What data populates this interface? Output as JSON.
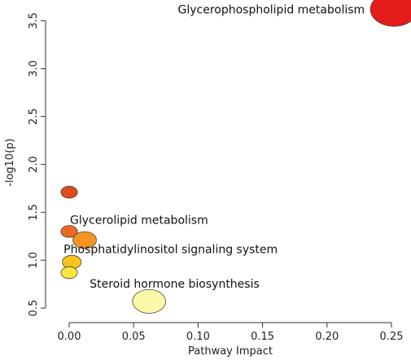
{
  "chart_data": {
    "type": "scatter",
    "title": "",
    "xlabel": "Pathway Impact",
    "ylabel": "-log10(p)",
    "xlim": [
      -0.012,
      0.262
    ],
    "ylim": [
      0.45,
      3.7
    ],
    "x_ticks": [
      "0.00",
      "0.05",
      "0.10",
      "0.15",
      "0.20",
      "0.25"
    ],
    "y_ticks": [
      "0.5",
      "1.0",
      "1.5",
      "2.0",
      "2.5",
      "3.0",
      "3.5"
    ],
    "grid": false,
    "legend": "none",
    "points": [
      {
        "x": 0.252,
        "y": 3.62,
        "size": 1.0,
        "color": "#e51a1a",
        "label": "Glycerophospholipid metabolism"
      },
      {
        "x": 0.0,
        "y": 1.71,
        "size": 0.35,
        "color": "#e04a1c",
        "label": ""
      },
      {
        "x": 0.0,
        "y": 1.3,
        "size": 0.35,
        "color": "#ec6a1f",
        "label": ""
      },
      {
        "x": 0.012,
        "y": 1.21,
        "size": 0.5,
        "color": "#f2941f",
        "label": "Glycerolipid metabolism"
      },
      {
        "x": 0.002,
        "y": 0.98,
        "size": 0.4,
        "color": "#f6c21c",
        "label": "Phosphatidylinositol signaling system"
      },
      {
        "x": 0.0,
        "y": 0.87,
        "size": 0.35,
        "color": "#f9e63c",
        "label": ""
      },
      {
        "x": 0.062,
        "y": 0.57,
        "size": 0.7,
        "color": "#fbf8a8",
        "label": "Steroid hormone biosynthesis"
      }
    ]
  }
}
